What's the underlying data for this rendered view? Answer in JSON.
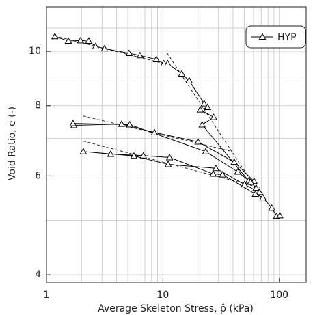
{
  "chart_data": {
    "type": "line",
    "xlabel": "Average Skeleton Stress, p̂ (kPa)",
    "ylabel": "Void Ratio, e (-)",
    "xscale": "log",
    "yscale": "log",
    "grid": true,
    "legend": "upper right",
    "marker": "triangle",
    "xlim": [
      1,
      170
    ],
    "xticks": [
      1,
      10,
      100
    ],
    "xminor": [
      2,
      3,
      4,
      5,
      6,
      7,
      8,
      9,
      20,
      30,
      40,
      50,
      60,
      70,
      80,
      90
    ],
    "ylim": [
      3.88,
      12.0
    ],
    "yticks": [
      4,
      6,
      8,
      10
    ],
    "yminor": [
      5,
      7,
      9,
      11
    ],
    "x": [
      1.18,
      1.54,
      1.96,
      2.31,
      2.64,
      3.15,
      5.12,
      6.36,
      8.78,
      10.2,
      11.0,
      14.5,
      16.8,
      22.6,
      24.2,
      20.9,
      27.3,
      21.7,
      54.5,
      60.7,
      41.0,
      20.0,
      8.45,
      4.42,
      1.72,
      1.69,
      5.19,
      23.3,
      43.9,
      56.7,
      63.2,
      67.6,
      50.2,
      28.5,
      11.1,
      5.63,
      2.07,
      3.56,
      6.8,
      11.4,
      27.0,
      32.6,
      62.3,
      72.3,
      86.2,
      94.7,
      101
    ],
    "series": [
      {
        "name": "HYP",
        "color": "#000000",
        "values": [
          10.63,
          10.43,
          10.45,
          10.43,
          10.2,
          10.11,
          9.92,
          9.83,
          9.67,
          9.51,
          9.51,
          9.12,
          8.87,
          8.07,
          7.95,
          7.87,
          7.63,
          7.4,
          5.88,
          5.87,
          6.35,
          6.9,
          7.17,
          7.42,
          7.38,
          7.44,
          7.4,
          6.63,
          6.1,
          5.85,
          5.71,
          5.61,
          5.79,
          6.19,
          6.29,
          6.51,
          6.63,
          6.56,
          6.52,
          6.47,
          6.05,
          6.03,
          5.57,
          5.49,
          5.26,
          5.09,
          5.1
        ]
      }
    ],
    "reference_lines": [
      {
        "x": [
          1.18,
          10.2
        ],
        "y": [
          10.65,
          9.51
        ]
      },
      {
        "x": [
          10.9,
          72.3
        ],
        "y": [
          9.92,
          5.46
        ]
      },
      {
        "x": [
          2.07,
          39.4
        ],
        "y": [
          7.67,
          6.63
        ]
      },
      {
        "x": [
          2.07,
          67.6
        ],
        "y": [
          6.92,
          5.72
        ]
      }
    ]
  }
}
